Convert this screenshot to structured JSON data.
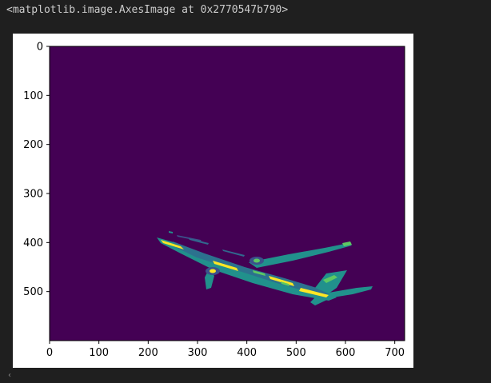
{
  "output": {
    "repr_text": "<matplotlib.image.AxesImage at 0x2770547b790>"
  },
  "plot": {
    "background_color": "#440154",
    "colormap": "viridis",
    "x_ticks": [
      "0",
      "100",
      "200",
      "300",
      "400",
      "500",
      "600",
      "700"
    ],
    "y_ticks": [
      "0",
      "100",
      "200",
      "300",
      "400",
      "500"
    ],
    "image_subject": "airplane"
  },
  "scrollbar": {
    "left_arrow": "‹"
  }
}
